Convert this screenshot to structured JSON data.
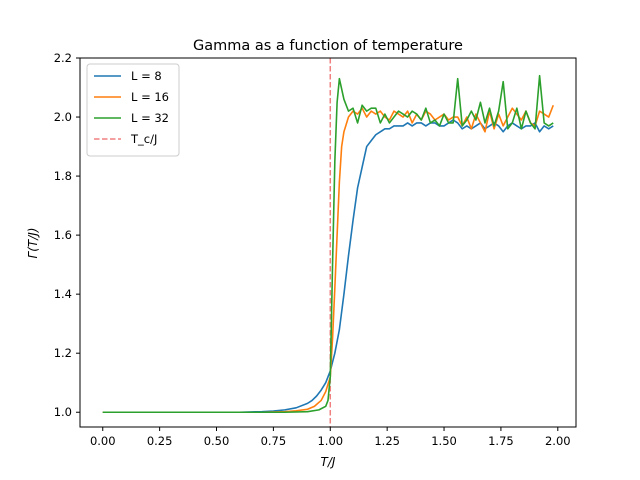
{
  "chart_data": {
    "type": "line",
    "title": "Gamma as a function of temperature",
    "xlabel": "T/J",
    "ylabel": "Γ(T/J)",
    "xlim": [
      -0.1,
      2.08
    ],
    "ylim": [
      0.95,
      2.2
    ],
    "xticks": [
      0.0,
      0.25,
      0.5,
      0.75,
      1.0,
      1.25,
      1.5,
      1.75,
      2.0
    ],
    "xtick_labels": [
      "0.00",
      "0.25",
      "0.50",
      "0.75",
      "1.00",
      "1.25",
      "1.50",
      "1.75",
      "2.00"
    ],
    "yticks": [
      1.0,
      1.2,
      1.4,
      1.6,
      1.8,
      2.0,
      2.2
    ],
    "ytick_labels": [
      "1.0",
      "1.2",
      "1.4",
      "1.6",
      "1.8",
      "2.0",
      "2.2"
    ],
    "grid": false,
    "legend_position": "top-left",
    "series": [
      {
        "name": "L = 8",
        "color": "#1f77b4",
        "x": [
          0.0,
          0.1,
          0.2,
          0.3,
          0.4,
          0.5,
          0.6,
          0.7,
          0.75,
          0.8,
          0.85,
          0.9,
          0.92,
          0.94,
          0.96,
          0.98,
          1.0,
          1.02,
          1.04,
          1.06,
          1.08,
          1.1,
          1.12,
          1.14,
          1.16,
          1.18,
          1.2,
          1.22,
          1.24,
          1.26,
          1.28,
          1.3,
          1.32,
          1.34,
          1.36,
          1.38,
          1.4,
          1.42,
          1.44,
          1.46,
          1.48,
          1.5,
          1.52,
          1.54,
          1.56,
          1.58,
          1.6,
          1.62,
          1.64,
          1.66,
          1.68,
          1.7,
          1.72,
          1.74,
          1.76,
          1.78,
          1.8,
          1.82,
          1.84,
          1.86,
          1.88,
          1.9,
          1.92,
          1.94,
          1.96,
          1.98
        ],
        "y": [
          1.0,
          1.0,
          1.0,
          1.0,
          1.0,
          1.0,
          1.0,
          1.002,
          1.004,
          1.008,
          1.015,
          1.03,
          1.04,
          1.055,
          1.075,
          1.1,
          1.14,
          1.2,
          1.28,
          1.4,
          1.53,
          1.65,
          1.76,
          1.83,
          1.9,
          1.92,
          1.94,
          1.95,
          1.96,
          1.96,
          1.97,
          1.97,
          1.97,
          1.98,
          1.97,
          1.98,
          1.98,
          1.97,
          1.98,
          1.98,
          1.97,
          1.97,
          1.98,
          1.99,
          1.98,
          1.96,
          1.97,
          1.96,
          1.97,
          1.98,
          1.96,
          1.97,
          1.98,
          1.97,
          1.95,
          1.97,
          1.98,
          1.97,
          1.96,
          1.97,
          1.97,
          1.98,
          1.95,
          1.97,
          1.96,
          1.97
        ]
      },
      {
        "name": "L = 16",
        "color": "#ff7f0e",
        "x": [
          0.0,
          0.1,
          0.2,
          0.3,
          0.4,
          0.5,
          0.6,
          0.7,
          0.8,
          0.85,
          0.9,
          0.93,
          0.96,
          0.98,
          1.0,
          1.01,
          1.02,
          1.03,
          1.04,
          1.05,
          1.06,
          1.08,
          1.1,
          1.12,
          1.14,
          1.16,
          1.18,
          1.2,
          1.22,
          1.24,
          1.26,
          1.28,
          1.3,
          1.32,
          1.34,
          1.36,
          1.38,
          1.4,
          1.42,
          1.44,
          1.46,
          1.48,
          1.5,
          1.52,
          1.54,
          1.56,
          1.58,
          1.6,
          1.62,
          1.64,
          1.66,
          1.68,
          1.7,
          1.72,
          1.74,
          1.76,
          1.78,
          1.8,
          1.82,
          1.84,
          1.86,
          1.88,
          1.9,
          1.92,
          1.94,
          1.96,
          1.98
        ],
        "y": [
          1.0,
          1.0,
          1.0,
          1.0,
          1.0,
          1.0,
          1.0,
          1.0,
          1.002,
          1.005,
          1.01,
          1.02,
          1.04,
          1.07,
          1.12,
          1.25,
          1.42,
          1.6,
          1.78,
          1.9,
          1.95,
          2.0,
          2.02,
          2.01,
          2.03,
          2.0,
          2.02,
          2.01,
          2.02,
          2.0,
          1.99,
          2.02,
          2.01,
          2.0,
          2.02,
          1.98,
          2.01,
          1.99,
          2.02,
          2.01,
          1.99,
          2.0,
          2.01,
          1.99,
          2.0,
          2.0,
          1.97,
          2.0,
          1.96,
          2.01,
          1.98,
          1.95,
          2.02,
          1.96,
          2.01,
          1.97,
          2.0,
          2.03,
          2.01,
          1.99,
          2.02,
          1.98,
          1.97,
          2.02,
          2.01,
          2.0,
          2.04
        ]
      },
      {
        "name": "L = 32",
        "color": "#2ca02c",
        "x": [
          0.0,
          0.1,
          0.2,
          0.3,
          0.4,
          0.5,
          0.6,
          0.7,
          0.8,
          0.9,
          0.95,
          0.98,
          0.99,
          1.0,
          1.01,
          1.02,
          1.03,
          1.04,
          1.06,
          1.08,
          1.1,
          1.12,
          1.14,
          1.16,
          1.18,
          1.2,
          1.22,
          1.24,
          1.26,
          1.28,
          1.3,
          1.32,
          1.34,
          1.36,
          1.38,
          1.4,
          1.42,
          1.44,
          1.46,
          1.48,
          1.5,
          1.52,
          1.54,
          1.56,
          1.58,
          1.6,
          1.62,
          1.64,
          1.66,
          1.68,
          1.7,
          1.72,
          1.74,
          1.76,
          1.78,
          1.8,
          1.82,
          1.84,
          1.86,
          1.88,
          1.9,
          1.92,
          1.94,
          1.96,
          1.98
        ],
        "y": [
          1.0,
          1.0,
          1.0,
          1.0,
          1.0,
          1.0,
          1.0,
          1.0,
          1.0,
          1.002,
          1.008,
          1.02,
          1.04,
          1.12,
          1.5,
          1.85,
          2.05,
          2.13,
          2.06,
          2.02,
          2.03,
          1.98,
          2.04,
          2.02,
          2.03,
          2.03,
          1.98,
          2.01,
          1.98,
          2.0,
          2.02,
          2.01,
          2.0,
          2.02,
          2.01,
          1.99,
          2.03,
          1.98,
          1.99,
          1.97,
          2.01,
          1.98,
          1.98,
          2.13,
          1.97,
          1.99,
          2.02,
          1.99,
          2.05,
          1.98,
          2.03,
          1.97,
          2.02,
          2.12,
          1.96,
          1.98,
          2.03,
          1.96,
          2.02,
          1.98,
          1.96,
          2.14,
          1.98,
          1.97,
          1.98
        ]
      }
    ],
    "vline": {
      "name": "T_c/J",
      "x": 1.0,
      "color": "#f08080",
      "style": "dashed"
    }
  }
}
